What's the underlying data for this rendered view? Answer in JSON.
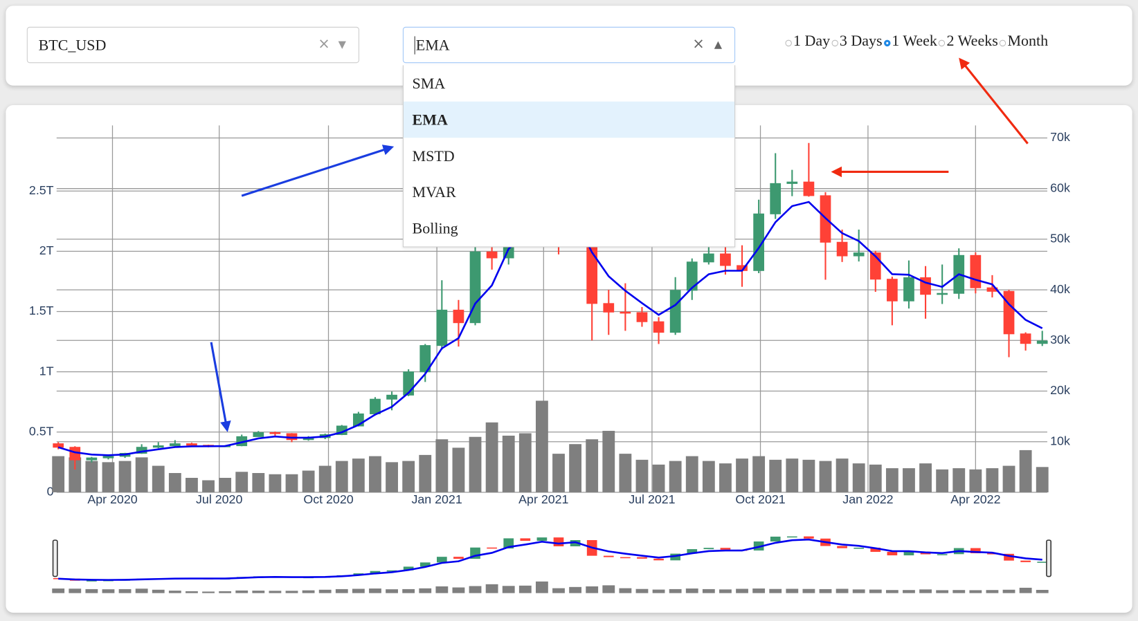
{
  "controls": {
    "symbol": "BTC_USD",
    "indicator": "EMA",
    "indicator_options": [
      "SMA",
      "EMA",
      "MSTD",
      "MVAR",
      "Bolling"
    ],
    "periods": [
      "1 Day",
      "3 Days",
      "1 Week",
      "2 Weeks",
      "Month"
    ],
    "selected_period": "1 Week"
  },
  "chart_data": {
    "type": "candlestick",
    "open": [
      9600,
      8900,
      6400,
      6800,
      7100,
      7700,
      8900,
      9200,
      9600,
      9300,
      9100,
      9200,
      11000,
      11800,
      11600,
      10400,
      10800,
      11400,
      13100,
      15500,
      18400,
      19200,
      23800,
      29000,
      36000,
      33500,
      47500,
      46300,
      58900,
      55800,
      60000,
      49000,
      56700,
      37300,
      35600,
      35500,
      33700,
      31600,
      39900,
      45500,
      47100,
      44800,
      43800,
      55000,
      61000,
      61300,
      58600,
      49400,
      46700,
      47300,
      42100,
      37800,
      42400,
      39100,
      39300,
      46800,
      40400,
      39700,
      31300,
      29400
    ],
    "high": [
      9900,
      9100,
      7000,
      7400,
      7800,
      9500,
      9900,
      10300,
      9800,
      9400,
      9300,
      11400,
      12100,
      12000,
      11700,
      11100,
      11600,
      13300,
      15900,
      18800,
      19900,
      24300,
      29300,
      41900,
      38000,
      49000,
      58300,
      61700,
      60000,
      64800,
      60500,
      59500,
      58000,
      40000,
      41300,
      36600,
      34600,
      42500,
      46200,
      50500,
      52900,
      48800,
      57800,
      67000,
      63700,
      69000,
      59300,
      51900,
      51900,
      47700,
      42600,
      45800,
      44700,
      45000,
      48200,
      47400,
      42900,
      40000,
      31600,
      31900
    ],
    "low": [
      8500,
      4500,
      5900,
      6500,
      6800,
      7600,
      8700,
      9100,
      9000,
      8900,
      9000,
      9100,
      11000,
      11100,
      9900,
      10200,
      10500,
      11300,
      13000,
      15200,
      16200,
      19000,
      21800,
      28200,
      28800,
      33000,
      44000,
      45000,
      50400,
      55000,
      47000,
      48500,
      30000,
      31100,
      31900,
      32700,
      29300,
      31100,
      38000,
      45000,
      43000,
      40600,
      43300,
      54000,
      58500,
      58400,
      42000,
      45500,
      45600,
      39600,
      33000,
      36300,
      34300,
      37200,
      38200,
      39300,
      38500,
      26700,
      28000,
      28900
    ],
    "close": [
      8900,
      6400,
      6800,
      7100,
      7700,
      8900,
      9200,
      9600,
      9300,
      9100,
      9200,
      11000,
      11800,
      11600,
      10400,
      10800,
      11400,
      13100,
      15500,
      18400,
      19200,
      23800,
      29000,
      36000,
      33500,
      47500,
      46300,
      58900,
      55800,
      60000,
      49000,
      56700,
      37300,
      35600,
      35500,
      33700,
      31600,
      39900,
      45500,
      47100,
      44800,
      43800,
      55000,
      61000,
      61300,
      58600,
      49400,
      46700,
      47300,
      42100,
      37800,
      42400,
      39100,
      39300,
      46800,
      40400,
      39700,
      31300,
      29400,
      29900
    ],
    "increasing_color": "#3d9970",
    "decreasing_color": "#ff4136",
    "ema": {
      "color": "#0000ee",
      "values": [
        8900,
        7900,
        7460,
        7320,
        7470,
        8040,
        8500,
        8940,
        9080,
        9090,
        9130,
        9880,
        10650,
        11030,
        10780,
        10790,
        11030,
        11860,
        13320,
        15350,
        16890,
        19650,
        23390,
        28430,
        30460,
        37280,
        40890,
        48090,
        51170,
        54700,
        52420,
        54130,
        47400,
        42680,
        39810,
        37370,
        35060,
        37000,
        40400,
        43080,
        43770,
        43780,
        48270,
        53360,
        56540,
        57360,
        54180,
        51190,
        49630,
        46620,
        43090,
        42980,
        41430,
        40580,
        43070,
        42000,
        41080,
        37170,
        34060,
        32400
      ]
    },
    "volume": {
      "color": "#7f7f7f",
      "values": [
        300000000000.0,
        290000000000.0,
        260000000000.0,
        250000000000.0,
        260000000000.0,
        290000000000.0,
        220000000000.0,
        160000000000.0,
        120000000000.0,
        100000000000.0,
        120000000000.0,
        170000000000.0,
        160000000000.0,
        150000000000.0,
        150000000000.0,
        180000000000.0,
        220000000000.0,
        260000000000.0,
        280000000000.0,
        300000000000.0,
        250000000000.0,
        260000000000.0,
        310000000000.0,
        440000000000.0,
        370000000000.0,
        460000000000.0,
        580000000000.0,
        470000000000.0,
        490000000000.0,
        760000000000.0,
        320000000000.0,
        400000000000.0,
        440000000000.0,
        510000000000.0,
        320000000000.0,
        270000000000.0,
        230000000000.0,
        260000000000.0,
        300000000000.0,
        260000000000.0,
        240000000000.0,
        280000000000.0,
        300000000000.0,
        270000000000.0,
        280000000000.0,
        270000000000.0,
        260000000000.0,
        280000000000.0,
        240000000000.0,
        230000000000.0,
        200000000000.0,
        200000000000.0,
        240000000000.0,
        190000000000.0,
        200000000000.0,
        190000000000.0,
        200000000000.0,
        220000000000.0,
        350000000000.0,
        210000000000.0
      ]
    },
    "xlim": [
      -0.1,
      59.3
    ],
    "xticks": [
      {
        "value": 3.25,
        "label": "Apr 2020"
      },
      {
        "value": 9.65,
        "label": "Jul 2020"
      },
      {
        "value": 16.2,
        "label": "Oct 2020"
      },
      {
        "value": 22.7,
        "label": "Jan 2021"
      },
      {
        "value": 29.1,
        "label": "Apr 2021"
      },
      {
        "value": 35.6,
        "label": "Jul 2021"
      },
      {
        "value": 42.1,
        "label": "Oct 2021"
      },
      {
        "value": 48.55,
        "label": "Jan 2022"
      },
      {
        "value": 55.0,
        "label": "Apr 2022"
      }
    ],
    "ylim": [
      0,
      3020000000000.0
    ],
    "yticks": [
      0,
      {
        "value": 500000000000.0,
        "label": "0.5T"
      },
      {
        "value": 1000000000000.0,
        "label": "1T"
      },
      {
        "value": 1500000000000.0,
        "label": "1.5T"
      },
      {
        "value": 2000000000000.0,
        "label": "2T"
      },
      {
        "value": 2500000000000.0,
        "label": "2.5T"
      }
    ],
    "y2lim": [
      0,
      71900
    ],
    "y2ticks": [
      {
        "value": 10000,
        "label": "10k"
      },
      {
        "value": 20000,
        "label": "20k"
      },
      {
        "value": 30000,
        "label": "30k"
      },
      {
        "value": 40000,
        "label": "40k"
      },
      {
        "value": 50000,
        "label": "50k"
      },
      {
        "value": 60000,
        "label": "60k"
      },
      {
        "value": 70000,
        "label": "70k"
      }
    ],
    "grid": true
  }
}
